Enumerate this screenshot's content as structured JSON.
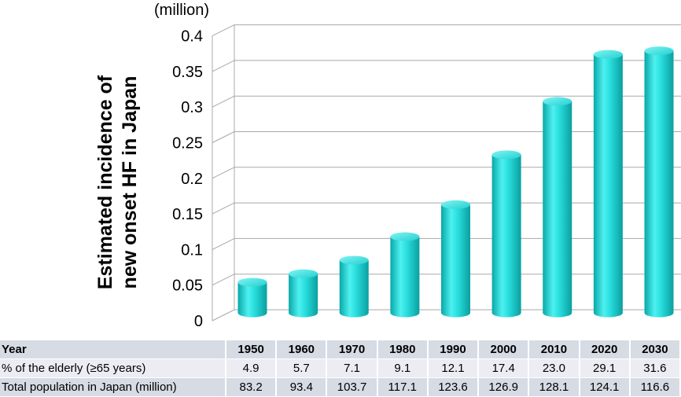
{
  "chart_data": {
    "type": "bar",
    "categories": [
      "1950",
      "1960",
      "1970",
      "1980",
      "1990",
      "2000",
      "2010",
      "2020",
      "2030"
    ],
    "values": [
      0.043,
      0.055,
      0.074,
      0.107,
      0.152,
      0.222,
      0.297,
      0.363,
      0.368
    ],
    "ylabel_lines": [
      "Estimated incidence of",
      "new onset HF in Japan"
    ],
    "unit": "(million)",
    "ylim": [
      0,
      0.4
    ],
    "yticks": [
      "0",
      "0.05",
      "0.1",
      "0.15",
      "0.2",
      "0.25",
      "0.3",
      "0.35",
      "0.4"
    ],
    "grid": true,
    "bar_color": "#1fd3d3"
  },
  "table": {
    "header": "Year",
    "years": [
      "1950",
      "1960",
      "1970",
      "1980",
      "1990",
      "2000",
      "2010",
      "2020",
      "2030"
    ],
    "rows": [
      {
        "label": "% of the elderly (≥65 years)",
        "values": [
          "4.9",
          "5.7",
          "7.1",
          "9.1",
          "12.1",
          "17.4",
          "23.0",
          "29.1",
          "31.6"
        ]
      },
      {
        "label": "Total population in Japan (million)",
        "values": [
          "83.2",
          "93.4",
          "103.7",
          "117.1",
          "123.6",
          "126.9",
          "128.1",
          "124.1",
          "116.6"
        ]
      }
    ]
  }
}
